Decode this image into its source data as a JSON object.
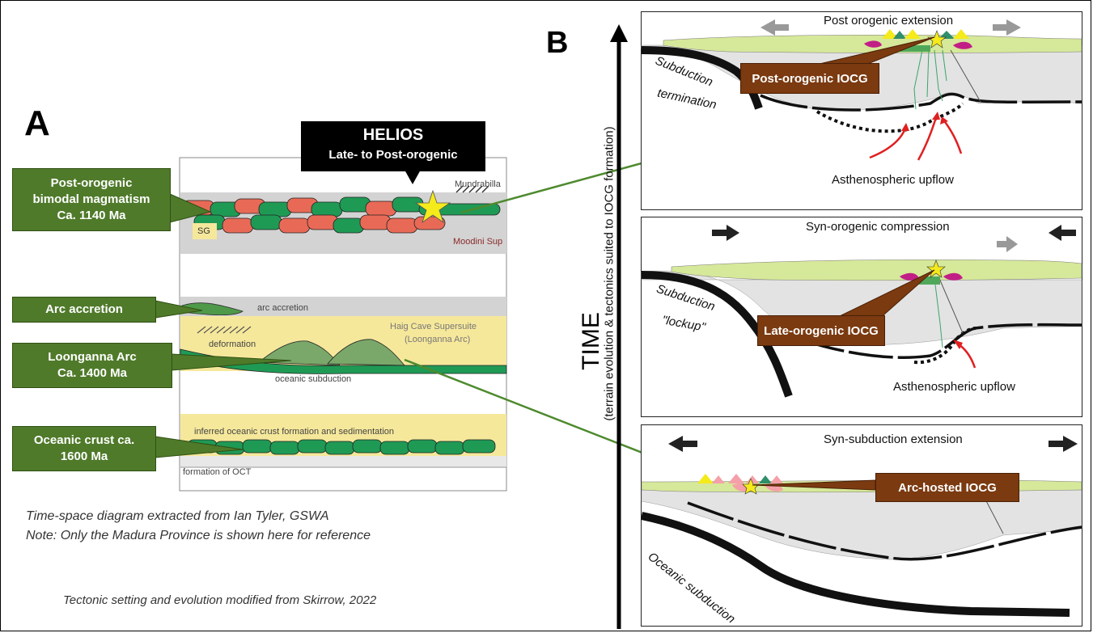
{
  "panel_a": {
    "letter": "A",
    "helios": {
      "title": "HELIOS",
      "subtitle": "Late- to Post-orogenic"
    },
    "callouts": {
      "post_orogenic": [
        "Post-orogenic",
        "bimodal magmatism",
        "Ca. 1140 Ma"
      ],
      "arc_accretion": [
        "Arc accretion"
      ],
      "loonganna": [
        "Loonganna Arc",
        "Ca. 1400 Ma"
      ],
      "oceanic_crust": [
        "Oceanic crust ca.",
        "1600 Ma"
      ]
    },
    "inner_labels": {
      "mundrabilla": "Mundrabilla",
      "moodini": "Moodini Sup",
      "sg": "SG",
      "arc_accretion": "arc accretion",
      "haig_cave": "Haig Cave Supersuite",
      "loonganna_arc": "(Loonganna Arc)",
      "deformation": "deformation",
      "oceanic_subduction": "oceanic subduction",
      "inferred": "inferred oceanic crust formation and sedimentation",
      "oct": "formation of OCT"
    },
    "caption_line1": "Time-space diagram extracted from Ian Tyler, GSWA",
    "caption_line2": "Note: Only the Madura Province is shown here for reference",
    "caption_line3": "Tectonic setting and evolution modified from Skirrow, 2022"
  },
  "panel_b": {
    "letter": "B",
    "time_label": "TIME",
    "time_sublabel": "(terrain evolution & tectonics suited to IOCG formation)",
    "panels": [
      {
        "title": "Post orogenic extension",
        "iocg_label": "Post-orogenic IOCG",
        "left_label": [
          "Subduction",
          "termination"
        ],
        "upflow_label": "Asthenospheric upflow"
      },
      {
        "title": "Syn-orogenic compression",
        "iocg_label": "Late-orogenic IOCG",
        "left_label": [
          "Subduction",
          "\"lockup\""
        ],
        "upflow_label": "Asthenospheric upflow"
      },
      {
        "title": "Syn-subduction extension",
        "iocg_label": "Arc-hosted IOCG",
        "left_label": [
          "Oceanic subduction"
        ]
      }
    ]
  },
  "colors": {
    "callout_green": "#4f7a2a",
    "iocg_brown": "#7b3a10",
    "crust_green": "#d6e89a",
    "mantle_gray": "#e3e3e3",
    "arrow_green": "#4e8a2e",
    "upflow_red": "#e02020",
    "star_yellow": "#f5ea1a"
  }
}
